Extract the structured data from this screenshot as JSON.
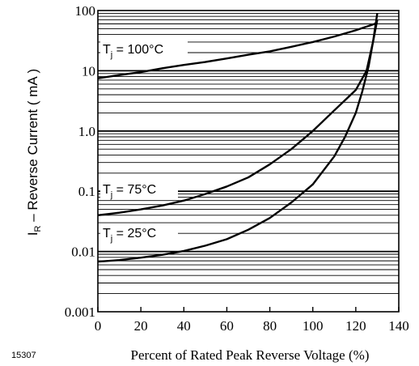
{
  "figure_id": "15307",
  "chart_data": {
    "type": "line",
    "xlabel": "Percent of Rated Peak Reverse Voltage (%)",
    "ylabel": "I_R – Reverse Current ( mA )",
    "ylabel_main": "I",
    "ylabel_sub": "R",
    "ylabel_rest": " – Reverse Current ( mA )",
    "xlim": [
      0,
      140
    ],
    "ylim": [
      0.001,
      100
    ],
    "y_scale": "log",
    "grid": "log-minor horizontal lines",
    "x_ticks": [
      "0",
      "20",
      "40",
      "60",
      "80",
      "100",
      "120",
      "140"
    ],
    "y_ticks": [
      "0.001",
      "0.01",
      "0.1",
      "1.0",
      "10",
      "100"
    ],
    "series": [
      {
        "name": "T_j = 100°C",
        "label_main": "T",
        "label_sub": "j",
        "label_rest": " = 100°C",
        "x": [
          0,
          10,
          20,
          30,
          40,
          50,
          60,
          70,
          80,
          90,
          100,
          110,
          120,
          125,
          130
        ],
        "y": [
          7.5,
          8.5,
          9.5,
          11,
          12.5,
          14,
          16,
          18.5,
          21,
          25,
          30,
          37,
          47,
          54,
          62
        ]
      },
      {
        "name": "T_j = 75°C",
        "label_main": "T",
        "label_sub": "j",
        "label_rest": " = 75°C",
        "x": [
          0,
          10,
          20,
          30,
          40,
          50,
          60,
          70,
          80,
          90,
          100,
          110,
          120,
          125,
          128,
          130
        ],
        "y": [
          0.04,
          0.044,
          0.05,
          0.058,
          0.07,
          0.09,
          0.12,
          0.17,
          0.28,
          0.5,
          1.0,
          2.2,
          4.8,
          10,
          30,
          70
        ]
      },
      {
        "name": "T_j = 25°C",
        "label_main": "T",
        "label_sub": "j",
        "label_rest": " = 25°C",
        "x": [
          0,
          10,
          20,
          30,
          40,
          50,
          60,
          70,
          80,
          90,
          100,
          110,
          115,
          120,
          123,
          126,
          128,
          130
        ],
        "y": [
          0.0068,
          0.0072,
          0.0079,
          0.0088,
          0.0102,
          0.0125,
          0.016,
          0.023,
          0.036,
          0.065,
          0.13,
          0.38,
          0.8,
          2.0,
          4.5,
          12,
          30,
          90
        ]
      }
    ]
  }
}
